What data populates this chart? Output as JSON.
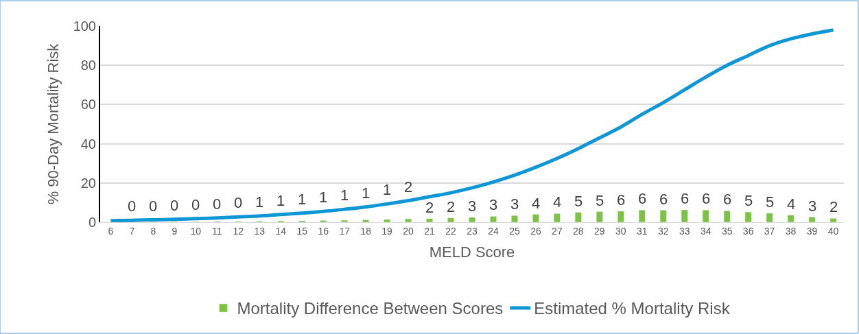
{
  "chart_data": {
    "type": "bar",
    "xlabel": "MELD Score",
    "ylabel": "% 90-Day Mortality Risk",
    "categories": [
      "6",
      "7",
      "8",
      "9",
      "10",
      "11",
      "12",
      "13",
      "14",
      "15",
      "16",
      "17",
      "18",
      "19",
      "20",
      "21",
      "22",
      "23",
      "24",
      "25",
      "26",
      "27",
      "28",
      "29",
      "30",
      "31",
      "32",
      "33",
      "34",
      "35",
      "36",
      "37",
      "38",
      "39",
      "40"
    ],
    "series": [
      {
        "name": "Mortality Difference Between Scores",
        "color": "#7dc242",
        "values": [
          null,
          0.2,
          0.2,
          0.3,
          0.3,
          0.4,
          0.4,
          0.5,
          0.7,
          0.7,
          0.9,
          1.0,
          1.2,
          1.4,
          1.7,
          1.8,
          2.2,
          2.5,
          3.0,
          3.4,
          4.0,
          4.4,
          5.0,
          5.4,
          5.6,
          6.2,
          6.1,
          6.3,
          6.2,
          5.8,
          5.2,
          4.6,
          3.6,
          2.6,
          2.0
        ],
        "value_labels": [
          null,
          "0",
          "0",
          "0",
          "0",
          "0",
          "0",
          "1",
          "1",
          "1",
          "1",
          "1",
          "1",
          "1",
          "2",
          "2",
          "2",
          "3",
          "3",
          "3",
          "4",
          "4",
          "5",
          "5",
          "6",
          "6",
          "6",
          "6",
          "6",
          "6",
          "5",
          "5",
          "4",
          "3",
          "2"
        ]
      },
      {
        "name": "Estimated % Mortality Risk",
        "type": "line",
        "color": "#0e96d5",
        "values": [
          0.8,
          1.0,
          1.2,
          1.5,
          1.8,
          2.2,
          2.7,
          3.2,
          3.9,
          4.6,
          5.5,
          6.6,
          7.8,
          9.3,
          11,
          13,
          15,
          17.5,
          20.5,
          24,
          28,
          32.5,
          37.5,
          43,
          48.5,
          55,
          61,
          67.5,
          74,
          80,
          85,
          90,
          93.5,
          96,
          98
        ]
      }
    ],
    "ylim": [
      0,
      100
    ],
    "yticks": [
      0,
      20,
      40,
      60,
      80,
      100
    ],
    "grid": "y",
    "legend": "bottom",
    "line_style": "solid",
    "marker": "none"
  }
}
